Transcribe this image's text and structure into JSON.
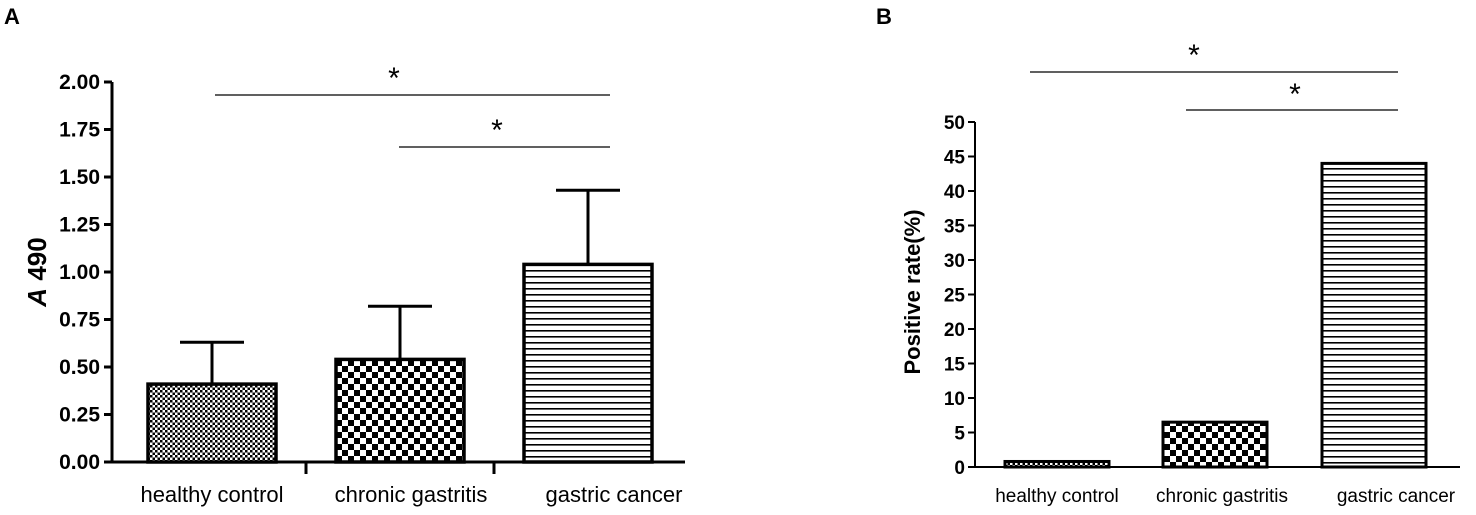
{
  "chart_data": [
    {
      "panel": "A",
      "type": "bar",
      "categories": [
        "healthy control",
        "chronic gastritis",
        "gastric cancer"
      ],
      "values": [
        0.41,
        0.54,
        1.04
      ],
      "errors": [
        0.22,
        0.28,
        0.39
      ],
      "patterns": [
        "fine-check",
        "checker",
        "horizontal-lines"
      ],
      "ylabel": "A 490",
      "ylabel_italic_part": "A",
      "ylabel_rest": " 490",
      "ylim": [
        0,
        2.0
      ],
      "yticks": [
        "0.00",
        "0.25",
        "0.50",
        "0.75",
        "1.00",
        "1.25",
        "1.50",
        "1.75",
        "2.00"
      ],
      "significance": [
        {
          "from": 0,
          "to": 2,
          "label": "*"
        },
        {
          "from": 1,
          "to": 2,
          "label": "*"
        }
      ]
    },
    {
      "panel": "B",
      "type": "bar",
      "categories": [
        "healthy control",
        "chronic gastritis",
        "gastric cancer"
      ],
      "values": [
        0.8,
        6.5,
        44
      ],
      "patterns": [
        "fine-check",
        "checker",
        "horizontal-lines"
      ],
      "ylabel": "Positive rate(%)",
      "ylim": [
        0,
        50
      ],
      "yticks": [
        "0",
        "5",
        "10",
        "15",
        "20",
        "25",
        "30",
        "35",
        "40",
        "45",
        "50"
      ],
      "significance": [
        {
          "from": 0,
          "to": 2,
          "label": "*"
        },
        {
          "from": 1,
          "to": 2,
          "label": "*"
        }
      ]
    }
  ]
}
